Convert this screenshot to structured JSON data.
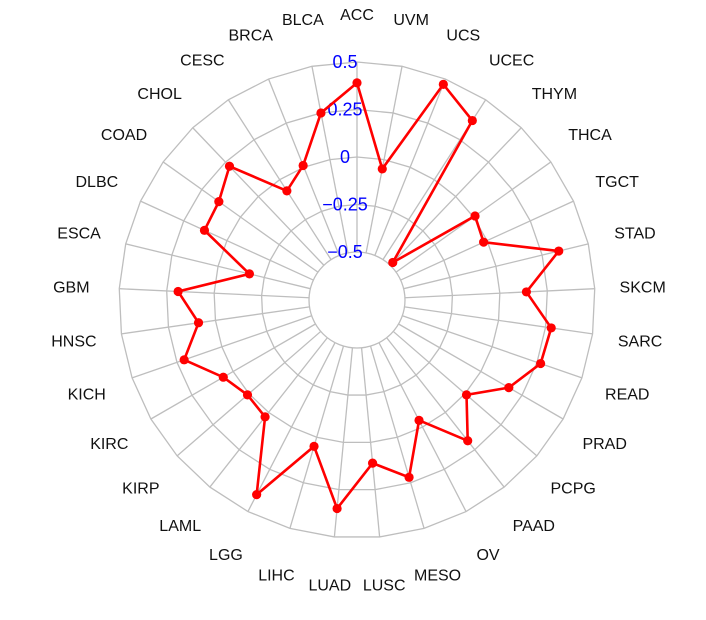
{
  "chart_data": {
    "type": "radar",
    "title": "",
    "xlabel": "",
    "ylabel": "",
    "categories": [
      "ACC",
      "UVM",
      "UCS",
      "UCEC",
      "THYM",
      "THCA",
      "TGCT",
      "STAD",
      "SKCM",
      "SARC",
      "READ",
      "PRAD",
      "PCPG",
      "PAAD",
      "OV",
      "MESO",
      "LUSC",
      "LUAD",
      "LIHC",
      "LGG",
      "LAML",
      "KIRP",
      "KIRC",
      "KICH",
      "HNSC",
      "GBM",
      "ESCA",
      "DLBC",
      "COAD",
      "CHOL",
      "CESC",
      "BRCA",
      "BLCA"
    ],
    "series": [
      {
        "name": "value",
        "color": "#ff0000",
        "values": [
          0.39,
          -0.05,
          0.47,
          0.37,
          -0.48,
          0.01,
          -0.02,
          0.34,
          0.14,
          0.28,
          0.27,
          0.17,
          0.01,
          0.19,
          -0.04,
          0.22,
          0.11,
          0.35,
          0.05,
          0.4,
          0.03,
          0.01,
          0.06,
          0.21,
          0.09,
          0.19,
          -0.17,
          0.13,
          0.14,
          0.22,
          -0.07,
          0.01,
          0.25
        ]
      }
    ],
    "radial_axis": {
      "ticks": [
        -0.5,
        -0.25,
        0,
        0.25,
        0.5
      ],
      "tick_labels": [
        "−0.5",
        "−0.25",
        "0",
        "0.25",
        "0.5"
      ],
      "range": [
        -0.5,
        0.5
      ],
      "tick_label_color": "#0000ff"
    },
    "grid": true,
    "legend": "none",
    "direction": "clockwise",
    "start_category_at": "top"
  },
  "style": {
    "grid_color": "#bebebe",
    "label_color": "#111111"
  }
}
